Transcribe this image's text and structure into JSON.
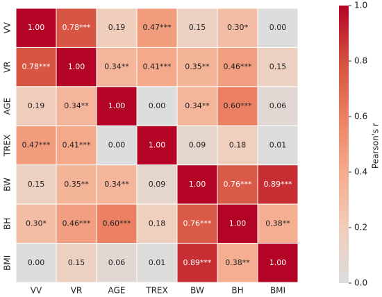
{
  "chart_data": {
    "type": "heatmap",
    "categories": [
      "VV",
      "VR",
      "AGE",
      "TREX",
      "BW",
      "BH",
      "BMI"
    ],
    "values": [
      [
        1.0,
        0.78,
        0.19,
        0.47,
        0.15,
        0.3,
        0.0
      ],
      [
        0.78,
        1.0,
        0.34,
        0.41,
        0.35,
        0.46,
        0.15
      ],
      [
        0.19,
        0.34,
        1.0,
        0.0,
        0.34,
        0.6,
        0.06
      ],
      [
        0.47,
        0.41,
        0.0,
        1.0,
        0.09,
        0.18,
        0.01
      ],
      [
        0.15,
        0.35,
        0.34,
        0.09,
        1.0,
        0.76,
        0.89
      ],
      [
        0.3,
        0.46,
        0.6,
        0.18,
        0.76,
        1.0,
        0.38
      ],
      [
        0.0,
        0.15,
        0.06,
        0.01,
        0.89,
        0.38,
        1.0
      ]
    ],
    "value_labels": [
      [
        "1.00",
        "0.78***",
        "0.19",
        "0.47***",
        "0.15",
        "0.30*",
        "0.00"
      ],
      [
        "0.78***",
        "1.00",
        "0.34**",
        "0.41***",
        "0.35**",
        "0.46***",
        "0.15"
      ],
      [
        "0.19",
        "0.34**",
        "1.00",
        "0.00",
        "0.34**",
        "0.60***",
        "0.06"
      ],
      [
        "0.47***",
        "0.41***",
        "0.00",
        "1.00",
        "0.09",
        "0.18",
        "0.01"
      ],
      [
        "0.15",
        "0.35**",
        "0.34**",
        "0.09",
        "1.00",
        "0.76***",
        "0.89***"
      ],
      [
        "0.30*",
        "0.46***",
        "0.60***",
        "0.18",
        "0.76***",
        "1.00",
        "0.38**"
      ],
      [
        "0.00",
        "0.15",
        "0.06",
        "0.01",
        "0.89***",
        "0.38**",
        "1.00"
      ]
    ],
    "colorbar_label": "Pearson's r",
    "clim": [
      0,
      1
    ],
    "cticks": [
      {
        "value": 0,
        "label": "0.0"
      },
      0.2,
      0.4,
      0.6,
      0.8,
      {
        "value": 1,
        "label": "1.0"
      }
    ],
    "colorscale": [
      [
        0,
        "#dcdddd"
      ],
      [
        0.2,
        "#f1cdba"
      ],
      [
        0.4,
        "#f5ab8d"
      ],
      [
        0.6,
        "#eb8063"
      ],
      [
        0.8,
        "#d4503f"
      ],
      [
        1,
        "#b40426"
      ]
    ]
  }
}
